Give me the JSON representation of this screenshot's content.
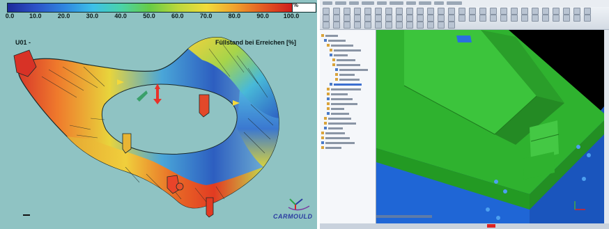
{
  "left_panel": {
    "colorbar": {
      "unit": "%",
      "ticks": [
        "0.0",
        "10.0",
        "20.0",
        "30.0",
        "40.0",
        "50.0",
        "60.0",
        "70.0",
        "80.0",
        "90.0",
        "100.0"
      ]
    },
    "series_label": "U01 -",
    "plot_title": "Füllstand bei Erreichen [%]",
    "logo": "CARMOULD"
  },
  "right_panel": {
    "viewport_colors": {
      "background": "#000000",
      "top_block": "#35b535",
      "base_block": "#1f66d6"
    }
  },
  "colors": {
    "left_background": "#8fc3c3",
    "accent_red": "#d22222"
  }
}
